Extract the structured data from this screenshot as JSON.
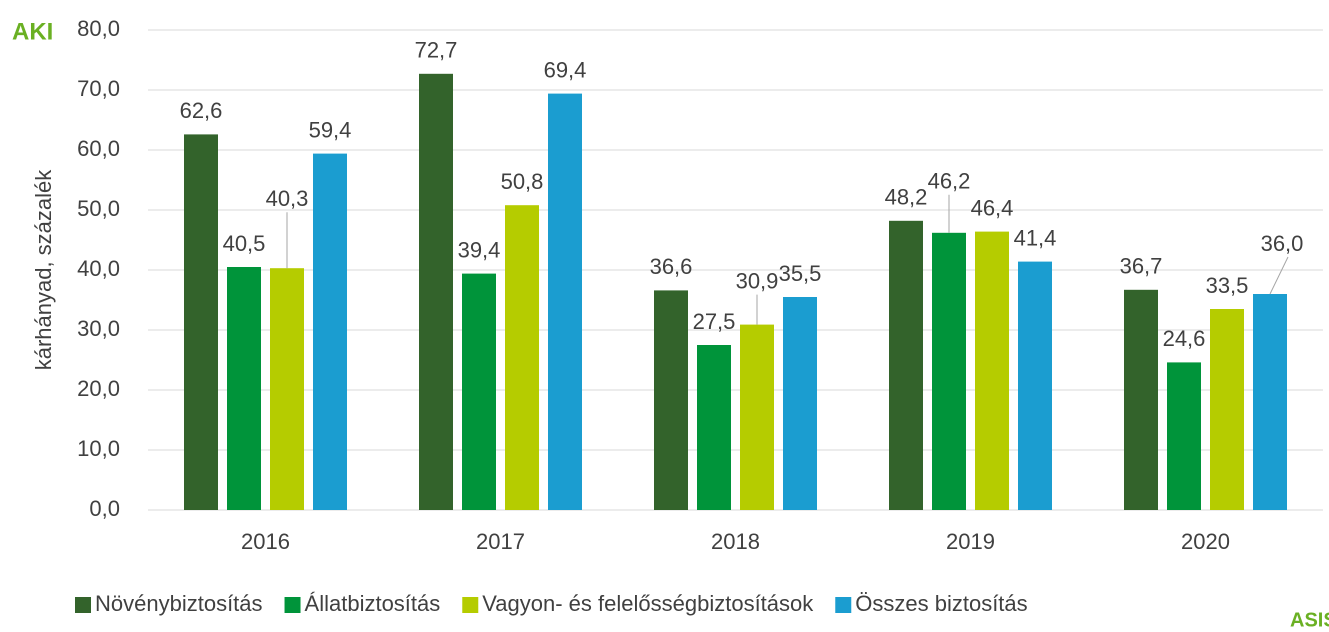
{
  "chart_data": {
    "type": "bar",
    "y_axis_label": "kárhányad, százalék",
    "logos": [
      "AKI",
      "ASIS"
    ],
    "categories": [
      "2016",
      "2017",
      "2018",
      "2019",
      "2020"
    ],
    "series": [
      {
        "name": "Növénybiztosítás",
        "color": "#33632b",
        "values": [
          62.6,
          72.7,
          36.6,
          48.2,
          36.7
        ],
        "value_labels": [
          "62,6",
          "72,7",
          "36,6",
          "48,2",
          "36,7"
        ]
      },
      {
        "name": "Állatbiztosítás",
        "color": "#00943a",
        "values": [
          40.5,
          39.4,
          27.5,
          46.2,
          24.6
        ],
        "value_labels": [
          "40,5",
          "39,4",
          "27,5",
          "46,2",
          "24,6"
        ]
      },
      {
        "name": "Vagyon- és felelősségbiztosítások",
        "color": "#b5cc00",
        "values": [
          40.3,
          50.8,
          30.9,
          46.4,
          33.5
        ],
        "value_labels": [
          "40,3",
          "50,8",
          "30,9",
          "46,4",
          "33,5"
        ]
      },
      {
        "name": "Összes biztosítás",
        "color": "#1b9dd0",
        "values": [
          59.4,
          69.4,
          35.5,
          41.4,
          36.0
        ],
        "value_labels": [
          "59,4",
          "69,4",
          "35,5",
          "41,4",
          "36,0"
        ]
      }
    ],
    "ylim": [
      0,
      80
    ],
    "yticks": [
      {
        "value": 0,
        "label": "0,0"
      },
      {
        "value": 10,
        "label": "10,0"
      },
      {
        "value": 20,
        "label": "20,0"
      },
      {
        "value": 30,
        "label": "30,0"
      },
      {
        "value": 40,
        "label": "40,0"
      },
      {
        "value": 50,
        "label": "50,0"
      },
      {
        "value": 60,
        "label": "60,0"
      },
      {
        "value": 70,
        "label": "70,0"
      },
      {
        "value": 80,
        "label": "80,0"
      }
    ],
    "grid": true,
    "legend": "bottom"
  }
}
